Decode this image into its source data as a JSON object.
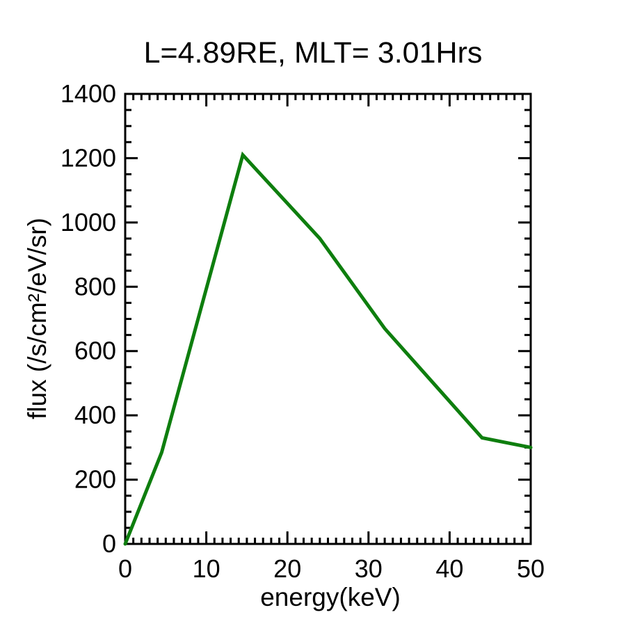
{
  "figure": {
    "background": "#ffffff",
    "text_color": "#000000"
  },
  "chart_data": {
    "type": "line",
    "title": "L=4.89RE, MLT= 3.01Hrs",
    "xlabel": "energy(keV)",
    "ylabel": "flux (/s/cm²/eV/sr)",
    "xlim": [
      0,
      50
    ],
    "ylim": [
      0,
      1400
    ],
    "x_major_ticks": [
      0,
      10,
      20,
      30,
      40,
      50
    ],
    "y_major_ticks": [
      0,
      200,
      400,
      600,
      800,
      1000,
      1200,
      1400
    ],
    "x_minor_step": 1,
    "y_minor_step": 50,
    "grid": false,
    "legend_position": "none",
    "axis_color": "#000000",
    "tick_direction": "in",
    "series": [
      {
        "name": "flux",
        "color": "#0e7e0e",
        "line_width": 5,
        "x": [
          0,
          4.5,
          14.5,
          24,
          32,
          44,
          50
        ],
        "y": [
          0,
          285,
          1210,
          950,
          670,
          330,
          300
        ]
      }
    ]
  }
}
